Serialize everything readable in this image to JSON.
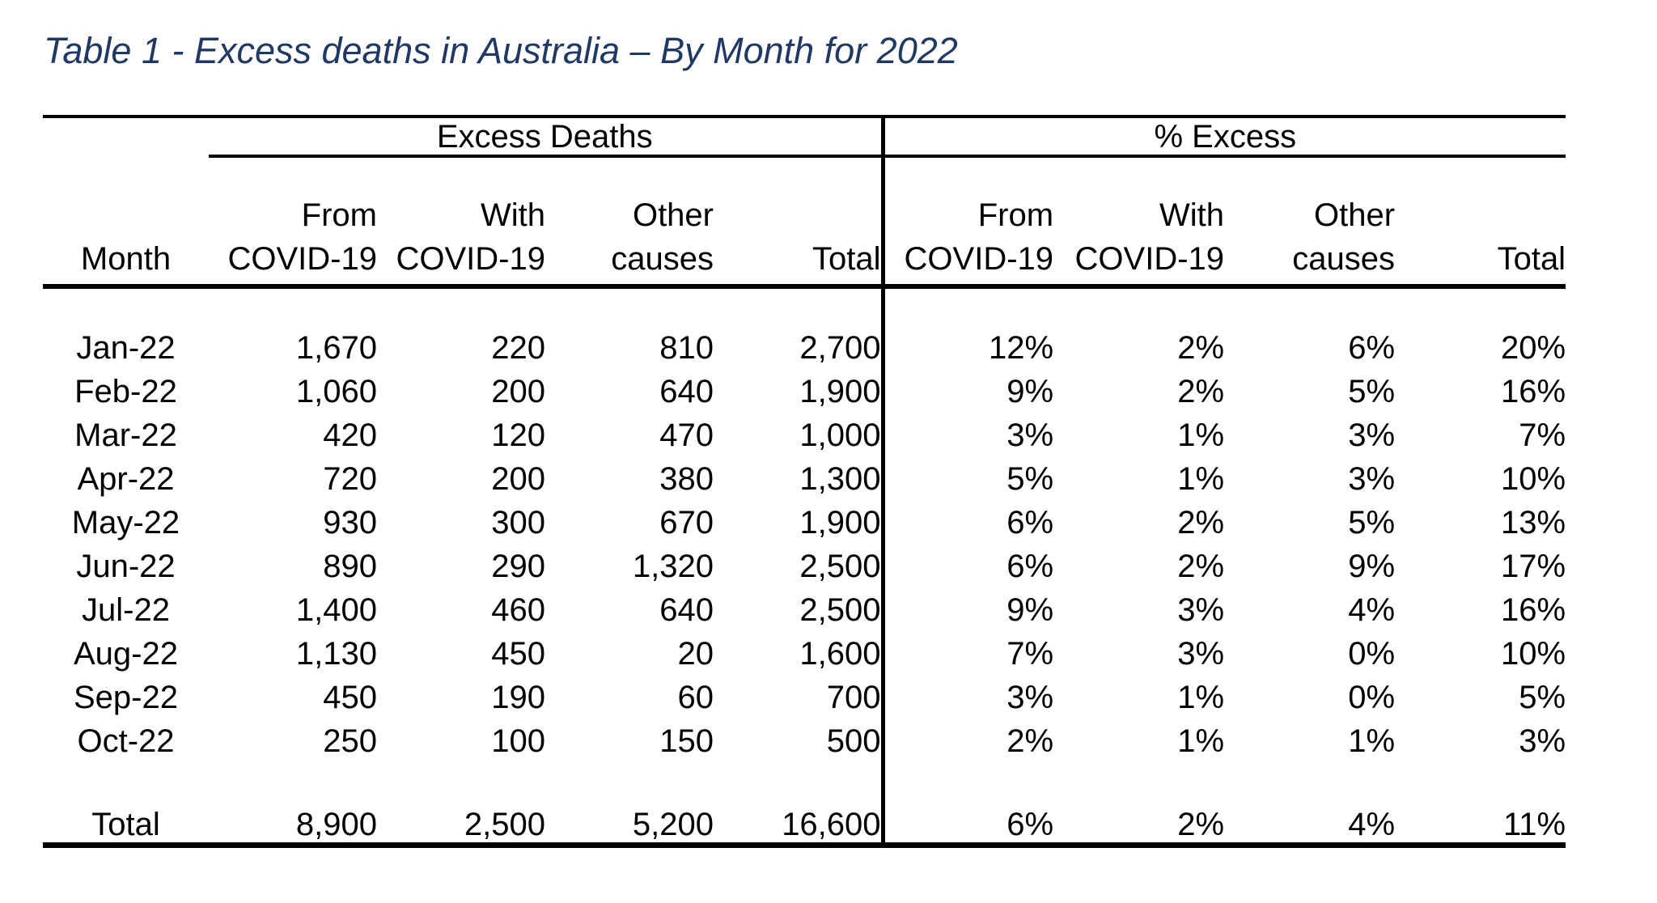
{
  "title": {
    "text": "Table 1 - Excess deaths in Australia – By Month for 2022",
    "color": "#1f3864"
  },
  "table": {
    "group_headers": [
      "Excess Deaths",
      "% Excess"
    ],
    "column_headers": {
      "month": "Month",
      "subs": [
        "From\nCOVID-19",
        "With\nCOVID-19",
        "Other\ncauses",
        "Total"
      ]
    },
    "rows": [
      {
        "month": "Jan-22",
        "excess_deaths": [
          "1,670",
          "220",
          "810",
          "2,700"
        ],
        "pct_excess": [
          "12%",
          "2%",
          "6%",
          "20%"
        ]
      },
      {
        "month": "Feb-22",
        "excess_deaths": [
          "1,060",
          "200",
          "640",
          "1,900"
        ],
        "pct_excess": [
          "9%",
          "2%",
          "5%",
          "16%"
        ]
      },
      {
        "month": "Mar-22",
        "excess_deaths": [
          "420",
          "120",
          "470",
          "1,000"
        ],
        "pct_excess": [
          "3%",
          "1%",
          "3%",
          "7%"
        ]
      },
      {
        "month": "Apr-22",
        "excess_deaths": [
          "720",
          "200",
          "380",
          "1,300"
        ],
        "pct_excess": [
          "5%",
          "1%",
          "3%",
          "10%"
        ]
      },
      {
        "month": "May-22",
        "excess_deaths": [
          "930",
          "300",
          "670",
          "1,900"
        ],
        "pct_excess": [
          "6%",
          "2%",
          "5%",
          "13%"
        ]
      },
      {
        "month": "Jun-22",
        "excess_deaths": [
          "890",
          "290",
          "1,320",
          "2,500"
        ],
        "pct_excess": [
          "6%",
          "2%",
          "9%",
          "17%"
        ]
      },
      {
        "month": "Jul-22",
        "excess_deaths": [
          "1,400",
          "460",
          "640",
          "2,500"
        ],
        "pct_excess": [
          "9%",
          "3%",
          "4%",
          "16%"
        ]
      },
      {
        "month": "Aug-22",
        "excess_deaths": [
          "1,130",
          "450",
          "20",
          "1,600"
        ],
        "pct_excess": [
          "7%",
          "3%",
          "0%",
          "10%"
        ]
      },
      {
        "month": "Sep-22",
        "excess_deaths": [
          "450",
          "190",
          "60",
          "700"
        ],
        "pct_excess": [
          "3%",
          "1%",
          "0%",
          "5%"
        ]
      },
      {
        "month": "Oct-22",
        "excess_deaths": [
          "250",
          "100",
          "150",
          "500"
        ],
        "pct_excess": [
          "2%",
          "1%",
          "1%",
          "3%"
        ]
      }
    ],
    "total_row": {
      "label": "Total",
      "excess_deaths": [
        "8,900",
        "2,500",
        "5,200",
        "16,600"
      ],
      "pct_excess": [
        "6%",
        "2%",
        "4%",
        "11%"
      ]
    }
  },
  "colors": {
    "title_text": "#1f3864",
    "table_text": "#000000",
    "rule": "#000000",
    "background": "#ffffff"
  }
}
